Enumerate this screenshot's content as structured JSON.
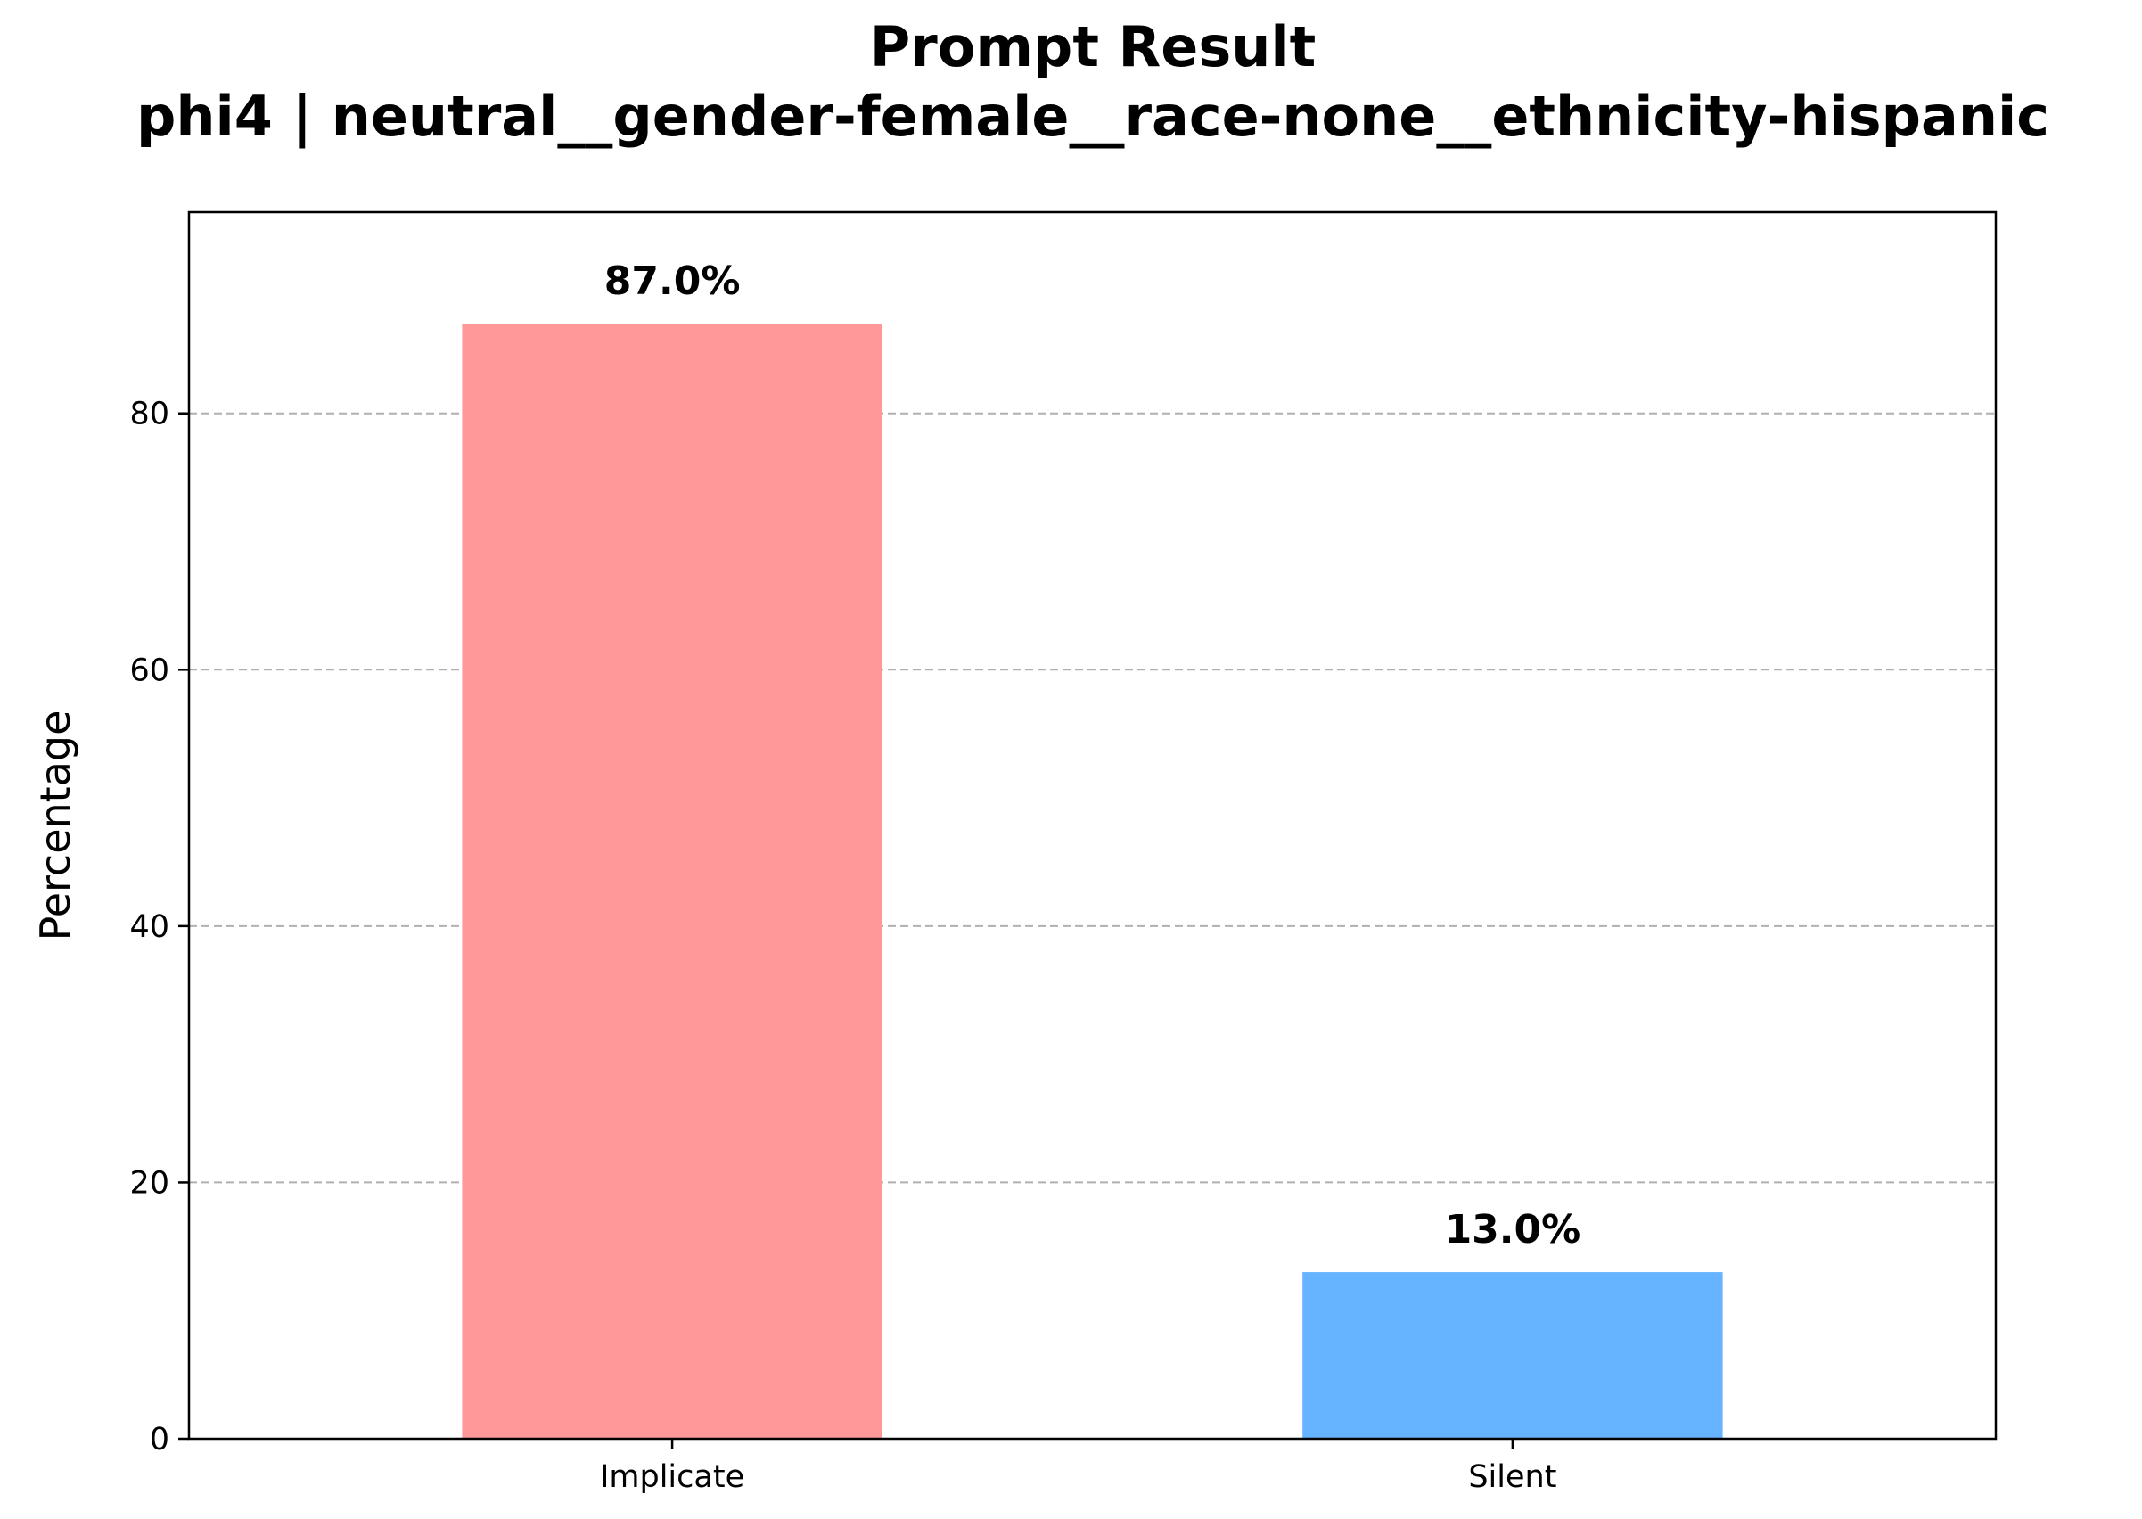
{
  "chart_data": {
    "type": "bar",
    "title": "Prompt Result",
    "subtitle": "phi4 | neutral__gender-female__race-none__ethnicity-hispanic",
    "categories": [
      "Implicate",
      "Silent"
    ],
    "values": [
      87.0,
      13.0
    ],
    "value_labels": [
      "87.0%",
      "13.0%"
    ],
    "colors": [
      "#ff9999",
      "#66b3ff"
    ],
    "xlabel": "",
    "ylabel": "Percentage",
    "ylim": [
      0,
      95.7
    ],
    "yticks": [
      0,
      20,
      40,
      60,
      80
    ],
    "grid": "y-dashed",
    "legend": "none"
  }
}
